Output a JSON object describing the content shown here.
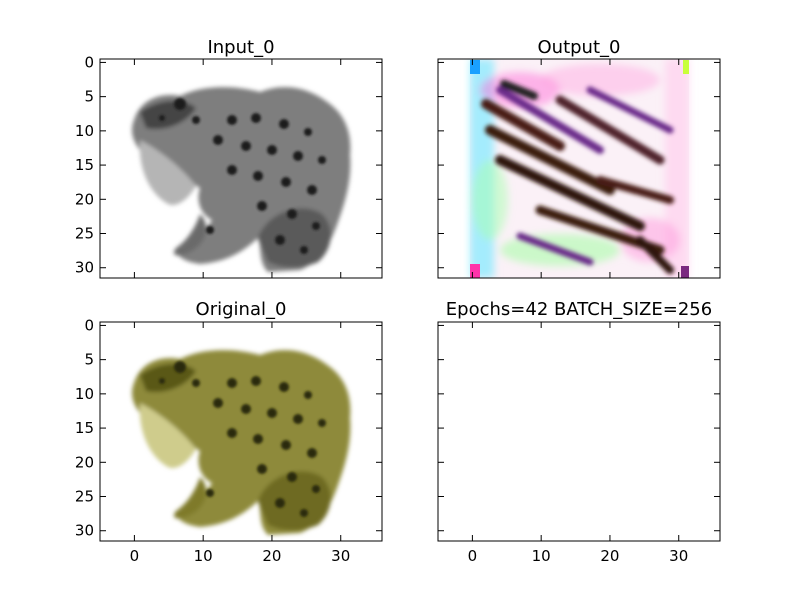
{
  "figure": {
    "background": "#ffffff",
    "axes_color": "#000000",
    "panels": [
      {
        "id": "input",
        "title": "Input_0",
        "image": "grayscale-frog",
        "xlim": [
          -5,
          36
        ],
        "ylim": [
          31.5,
          -0.5
        ],
        "y_ticks": [
          "0",
          "5",
          "10",
          "15",
          "20",
          "25",
          "30"
        ],
        "x_ticks": [],
        "show_y_tick_labels": true,
        "show_x_tick_labels": false
      },
      {
        "id": "output",
        "title": "Output_0",
        "image": "noisy-color-reconstruction",
        "xlim": [
          -5,
          36
        ],
        "ylim": [
          31.5,
          -0.5
        ],
        "y_ticks": [],
        "x_ticks": [],
        "show_y_tick_labels": false,
        "show_x_tick_labels": false
      },
      {
        "id": "original",
        "title": "Original_0",
        "image": "color-frog",
        "xlim": [
          -5,
          36
        ],
        "ylim": [
          31.5,
          -0.5
        ],
        "y_ticks": [
          "0",
          "5",
          "10",
          "15",
          "20",
          "25",
          "30"
        ],
        "x_ticks": [
          "0",
          "10",
          "20",
          "30"
        ],
        "show_y_tick_labels": true,
        "show_x_tick_labels": true
      },
      {
        "id": "info",
        "title": "Epochs=42 BATCH_SIZE=256",
        "image": "",
        "xlim": [
          -5,
          36
        ],
        "ylim": [
          31.5,
          -0.5
        ],
        "y_ticks": [],
        "x_ticks": [
          "0",
          "10",
          "20",
          "30"
        ],
        "show_y_tick_labels": false,
        "show_x_tick_labels": true
      }
    ],
    "colors": {
      "frog_gray_dark": "#2a2a2a",
      "frog_gray_mid": "#8a8a8a",
      "frog_gray_light": "#c8c8c8",
      "frog_olive_dark": "#4a4a12",
      "frog_olive_mid": "#8e8a3a",
      "frog_olive_light": "#c9c47a",
      "noise_cyan": "#33e0ff",
      "noise_magenta": "#ff33cc",
      "noise_green": "#66ff66",
      "noise_purple": "#6b2a8a",
      "noise_dark": "#3a1a10"
    }
  }
}
